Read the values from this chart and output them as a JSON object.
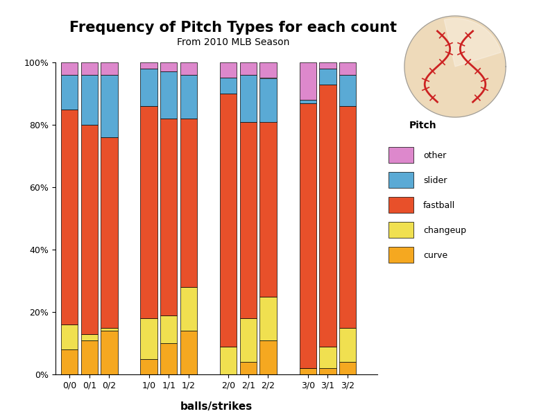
{
  "title": "Frequency of Pitch Types for each count",
  "subtitle": "From 2010 MLB Season",
  "xlabel": "balls/strikes",
  "categories": [
    "0/0",
    "0/1",
    "0/2",
    "1/0",
    "1/1",
    "1/2",
    "2/0",
    "2/1",
    "2/2",
    "3/0",
    "3/1",
    "3/2"
  ],
  "pitch_types": [
    "curve",
    "changeup",
    "fastball",
    "slider",
    "other"
  ],
  "colors": {
    "curve": "#F5A820",
    "changeup": "#F0E050",
    "fastball": "#E8502A",
    "slider": "#5AAAD5",
    "other": "#DD88CC"
  },
  "data": {
    "curve": [
      0.08,
      0.11,
      0.14,
      0.05,
      0.1,
      0.14,
      0.0,
      0.04,
      0.11,
      0.02,
      0.02,
      0.04
    ],
    "changeup": [
      0.08,
      0.02,
      0.01,
      0.13,
      0.09,
      0.14,
      0.09,
      0.14,
      0.14,
      0.0,
      0.07,
      0.11
    ],
    "fastball": [
      0.69,
      0.67,
      0.61,
      0.68,
      0.63,
      0.54,
      0.81,
      0.63,
      0.56,
      0.85,
      0.84,
      0.71
    ],
    "slider": [
      0.11,
      0.16,
      0.2,
      0.12,
      0.15,
      0.14,
      0.05,
      0.15,
      0.14,
      0.01,
      0.05,
      0.1
    ],
    "other": [
      0.04,
      0.04,
      0.04,
      0.02,
      0.03,
      0.04,
      0.05,
      0.04,
      0.05,
      0.12,
      0.02,
      0.04
    ]
  },
  "positions": [
    0,
    1,
    2,
    4,
    5,
    6,
    8,
    9,
    10,
    12,
    13,
    14
  ],
  "legend_title": "Pitch",
  "legend_order": [
    "other",
    "slider",
    "fastball",
    "changeup",
    "curve"
  ],
  "ylim": [
    0,
    1.0
  ],
  "yticks": [
    0.0,
    0.2,
    0.4,
    0.6,
    0.8,
    1.0
  ],
  "ytick_labels": [
    "0%",
    "20%",
    "40%",
    "60%",
    "80%",
    "100%"
  ],
  "bar_width": 0.85,
  "fig_width": 8.0,
  "fig_height": 6.0,
  "background_color": "#FFFFFF",
  "title_fontsize": 15,
  "subtitle_fontsize": 10,
  "axis_label_fontsize": 10,
  "tick_fontsize": 9,
  "legend_fontsize": 9,
  "legend_title_fontsize": 10,
  "xlim": [
    -0.7,
    15.5
  ]
}
